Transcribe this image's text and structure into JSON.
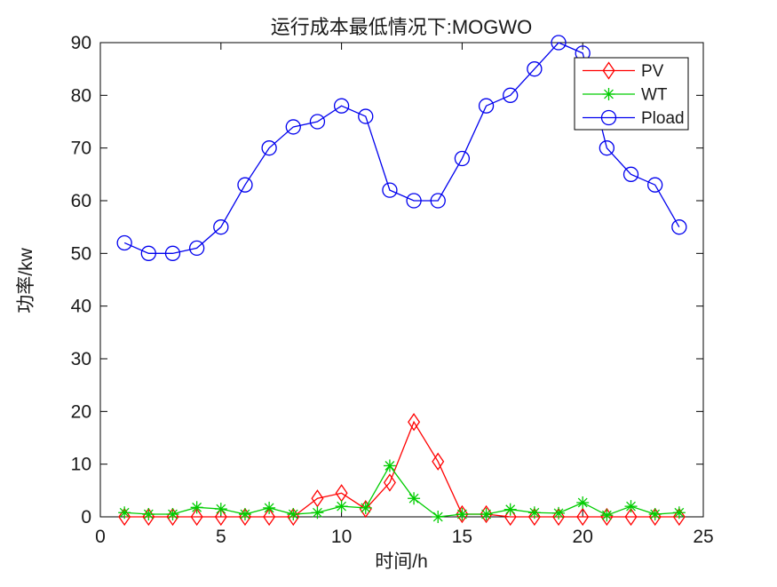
{
  "figure": {
    "background": "#ffffff",
    "axes_color": "#000000",
    "text_color": "#1a1a1a"
  },
  "chart_data": {
    "type": "line",
    "title": "运行成本最低情况下:MOGWO",
    "xlabel": "时间/h",
    "ylabel": "功率/kw",
    "xlim": [
      0,
      25
    ],
    "ylim": [
      0,
      90
    ],
    "xticks": [
      0,
      5,
      10,
      15,
      20,
      25
    ],
    "yticks": [
      0,
      10,
      20,
      30,
      40,
      50,
      60,
      70,
      80,
      90
    ],
    "grid": false,
    "legend_position": "northeast-inside",
    "x": [
      1,
      2,
      3,
      4,
      5,
      6,
      7,
      8,
      9,
      10,
      11,
      12,
      13,
      14,
      15,
      16,
      17,
      18,
      19,
      20,
      21,
      22,
      23,
      24
    ],
    "series": [
      {
        "name": "PV",
        "color": "#ff0000",
        "marker": "diamond",
        "values": [
          0,
          0,
          0,
          0,
          0,
          0,
          0,
          0,
          3.5,
          4.5,
          1.5,
          6.5,
          18,
          10.5,
          0.5,
          0.5,
          0,
          0,
          0,
          0,
          0,
          0,
          0,
          0
        ]
      },
      {
        "name": "WT",
        "color": "#00cc00",
        "marker": "asterisk",
        "values": [
          0.8,
          0.5,
          0.5,
          1.8,
          1.5,
          0.5,
          1.7,
          0.5,
          0.8,
          2,
          1.7,
          9.7,
          3.5,
          0,
          0.5,
          0.5,
          1.4,
          0.8,
          0.7,
          2.7,
          0.3,
          2,
          0.5,
          0.8
        ]
      },
      {
        "name": "Pload",
        "color": "#0000ee",
        "marker": "circle",
        "values": [
          52,
          50,
          50,
          51,
          55,
          63,
          70,
          74,
          75,
          78,
          76,
          62,
          60,
          60,
          68,
          78,
          80,
          85,
          90,
          88,
          70,
          65,
          63,
          55
        ]
      }
    ]
  }
}
